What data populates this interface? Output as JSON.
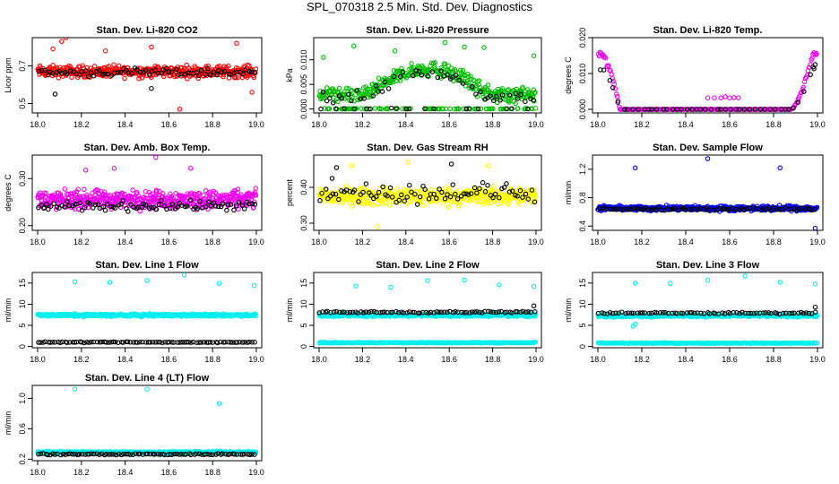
{
  "title": "SPL_070318  2.5 Min. Std. Dev. Diagnostics",
  "chart_data": [
    {
      "type": "scatter",
      "title": "Stan. Dev. Li-820 CO2",
      "ylabel": "Licor ppm",
      "xlim": [
        18.0,
        19.0
      ],
      "ylim": [
        0.45,
        0.85
      ],
      "xticks": [
        "18.0",
        "18.2",
        "18.4",
        "18.6",
        "18.8",
        "19.0"
      ],
      "yticks": [
        {
          "v": 0.5,
          "label": "0.5"
        },
        {
          "v": 0.7,
          "label": "0.7"
        }
      ],
      "series": [
        {
          "color": "#ff0000",
          "n": 420,
          "profile": {
            "kind": "band",
            "base": 0.67,
            "spread": 0.045
          },
          "outliers": [
            [
              18.11,
              0.83
            ],
            [
              18.13,
              0.85
            ],
            [
              18.07,
              0.79
            ],
            [
              18.65,
              0.47
            ],
            [
              18.31,
              0.78
            ],
            [
              18.52,
              0.8
            ],
            [
              18.91,
              0.82
            ],
            [
              18.98,
              0.56
            ]
          ]
        },
        {
          "color": "#000000",
          "n": 75,
          "profile": {
            "kind": "band",
            "base": 0.665,
            "spread": 0.03
          },
          "outliers": [
            [
              18.08,
              0.55
            ],
            [
              18.52,
              0.58
            ]
          ]
        }
      ]
    },
    {
      "type": "scatter",
      "title": "Stan. Dev. Li-820 Pressure",
      "ylabel": "kPa",
      "xlim": [
        18.0,
        19.0
      ],
      "ylim": [
        -0.0008,
        0.0145
      ],
      "xticks": [
        "18.0",
        "18.2",
        "18.4",
        "18.6",
        "18.8",
        "19.0"
      ],
      "yticks": [
        {
          "v": 0.0,
          "label": "0.000"
        },
        {
          "v": 0.005,
          "label": "0.005"
        },
        {
          "v": 0.01,
          "label": "0.010"
        }
      ],
      "series": [
        {
          "color": "#00bb00",
          "n": 430,
          "profile": {
            "kind": "arch",
            "base": 0.003,
            "peak": 0.0082,
            "spread": 0.0022,
            "zeroFrac": 0.18
          },
          "outliers": [
            [
              18.16,
              0.0128
            ],
            [
              18.35,
              0.0118
            ],
            [
              18.58,
              0.0135
            ],
            [
              18.67,
              0.0126
            ],
            [
              18.76,
              0.0125
            ],
            [
              18.99,
              0.0108
            ],
            [
              18.02,
              0.0105
            ]
          ]
        },
        {
          "color": "#000000",
          "n": 70,
          "profile": {
            "kind": "arch",
            "base": 0.0025,
            "peak": 0.0075,
            "spread": 0.0018,
            "zeroFrac": 0.25
          },
          "outliers": []
        }
      ]
    },
    {
      "type": "scatter",
      "title": "Stan. Dev. Li-820 Temp.",
      "ylabel": "degrees C",
      "xlim": [
        18.0,
        19.0
      ],
      "ylim": [
        -0.001,
        0.02
      ],
      "xticks": [
        "18.0",
        "18.2",
        "18.4",
        "18.6",
        "18.8",
        "19.0"
      ],
      "yticks": [
        {
          "v": 0.0,
          "label": "0.000"
        },
        {
          "v": 0.01,
          "label": "0.010"
        },
        {
          "v": 0.02,
          "label": "0.020"
        }
      ],
      "series": [
        {
          "color": "#ee00ee",
          "n": 230,
          "profile": {
            "kind": "ushape",
            "high": 0.0155,
            "spread": 0.0015
          },
          "outliers": [
            [
              18.5,
              0.0032
            ],
            [
              18.53,
              0.0032
            ],
            [
              18.56,
              0.0032
            ],
            [
              18.58,
              0.0035
            ],
            [
              18.6,
              0.0032
            ],
            [
              18.62,
              0.0033
            ],
            [
              18.64,
              0.0032
            ]
          ]
        },
        {
          "color": "#000000",
          "n": 45,
          "profile": {
            "kind": "ushape",
            "high": 0.0115,
            "spread": 0.001
          },
          "outliers": [
            [
              18.98,
              0.0118
            ],
            [
              18.99,
              0.0125
            ]
          ]
        }
      ]
    },
    {
      "type": "scatter",
      "title": "Stan. Dev. Amb. Box Temp.",
      "ylabel": "degrees C",
      "xlim": [
        18.0,
        19.0
      ],
      "ylim": [
        0.19,
        0.35
      ],
      "xticks": [
        "18.0",
        "18.2",
        "18.4",
        "18.6",
        "18.8",
        "19.0"
      ],
      "yticks": [
        {
          "v": 0.2,
          "label": "0.20"
        },
        {
          "v": 0.3,
          "label": "0.30"
        }
      ],
      "series": [
        {
          "color": "#ee00ee",
          "n": 520,
          "profile": {
            "kind": "band",
            "base": 0.255,
            "spread": 0.028
          },
          "outliers": [
            [
              18.54,
              0.345
            ],
            [
              18.35,
              0.322
            ],
            [
              18.7,
              0.322
            ],
            [
              18.22,
              0.318
            ]
          ]
        },
        {
          "color": "#000000",
          "n": 85,
          "profile": {
            "kind": "band",
            "base": 0.242,
            "spread": 0.015
          },
          "outliers": []
        }
      ]
    },
    {
      "type": "scatter",
      "title": "Stan. Dev. Gas Stream RH",
      "ylabel": "percent",
      "xlim": [
        18.0,
        19.0
      ],
      "ylim": [
        0.28,
        0.49
      ],
      "xticks": [
        "18.0",
        "18.2",
        "18.4",
        "18.6",
        "18.8",
        "19.0"
      ],
      "yticks": [
        {
          "v": 0.3,
          "label": "0.30"
        },
        {
          "v": 0.4,
          "label": "0.40"
        }
      ],
      "series": [
        {
          "color": "#ffff00",
          "n": 470,
          "profile": {
            "kind": "band",
            "base": 0.375,
            "spread": 0.035
          },
          "outliers": [
            [
              18.15,
              0.46
            ],
            [
              18.41,
              0.47
            ],
            [
              18.78,
              0.46
            ],
            [
              18.27,
              0.29
            ]
          ]
        },
        {
          "color": "#000000",
          "n": 80,
          "profile": {
            "kind": "band",
            "base": 0.385,
            "spread": 0.04
          },
          "outliers": [
            [
              18.08,
              0.455
            ],
            [
              18.61,
              0.465
            ],
            [
              18.06,
              0.425
            ]
          ]
        }
      ]
    },
    {
      "type": "scatter",
      "title": "Stan. Dev. Sample Flow",
      "ylabel": "ml/min",
      "xlim": [
        18.0,
        19.0
      ],
      "ylim": [
        0.34,
        1.4
      ],
      "xticks": [
        "18.0",
        "18.2",
        "18.4",
        "18.6",
        "18.8",
        "19.0"
      ],
      "yticks": [
        {
          "v": 0.4,
          "label": "0.4"
        },
        {
          "v": 0.8,
          "label": "0.8"
        },
        {
          "v": 1.2,
          "label": "1.2"
        }
      ],
      "series": [
        {
          "color": "#0000ee",
          "n": 450,
          "profile": {
            "kind": "band",
            "base": 0.65,
            "spread": 0.05
          },
          "outliers": [
            [
              18.17,
              1.22
            ],
            [
              18.5,
              1.35
            ],
            [
              18.83,
              1.22
            ],
            [
              18.99,
              0.37
            ]
          ]
        },
        {
          "color": "#000000",
          "n": 80,
          "profile": {
            "kind": "band",
            "base": 0.64,
            "spread": 0.025
          },
          "outliers": []
        }
      ]
    },
    {
      "type": "scatter",
      "title": "Stan. Dev. Line 1 Flow",
      "ylabel": "ml/min",
      "xlim": [
        18.0,
        19.0
      ],
      "ylim": [
        -0.3,
        17.5
      ],
      "xticks": [
        "18.0",
        "18.2",
        "18.4",
        "18.6",
        "18.8",
        "19.0"
      ],
      "yticks": [
        {
          "v": 0,
          "label": "0"
        },
        {
          "v": 5,
          "label": "5"
        },
        {
          "v": 10,
          "label": "10"
        },
        {
          "v": 15,
          "label": "15"
        }
      ],
      "series": [
        {
          "color": "#00eeee",
          "n": 380,
          "profile": {
            "kind": "band",
            "base": 7.4,
            "spread": 0.45
          },
          "outliers": [
            [
              18.17,
              15.3
            ],
            [
              18.33,
              15.2
            ],
            [
              18.5,
              15.6
            ],
            [
              18.67,
              16.9
            ],
            [
              18.83,
              14.9
            ],
            [
              18.99,
              14.4
            ]
          ]
        },
        {
          "color": "#000000",
          "n": 90,
          "profile": {
            "kind": "band",
            "base": 1.0,
            "spread": 0.15
          },
          "outliers": []
        }
      ]
    },
    {
      "type": "scatter",
      "title": "Stan. Dev. Line 2 Flow",
      "ylabel": "ml/min",
      "xlim": [
        18.0,
        19.0
      ],
      "ylim": [
        -0.3,
        17.5
      ],
      "xticks": [
        "18.0",
        "18.2",
        "18.4",
        "18.6",
        "18.8",
        "19.0"
      ],
      "yticks": [
        {
          "v": 0,
          "label": "0"
        },
        {
          "v": 5,
          "label": "5"
        },
        {
          "v": 10,
          "label": "10"
        },
        {
          "v": 15,
          "label": "15"
        }
      ],
      "series": [
        {
          "color": "#00eeee",
          "n": 380,
          "profile": {
            "kind": "band",
            "base": 7.4,
            "spread": 0.5
          },
          "outliers": [
            [
              18.17,
              14.3
            ],
            [
              18.33,
              14.0
            ],
            [
              18.5,
              15.6
            ],
            [
              18.67,
              15.7
            ],
            [
              18.83,
              14.6
            ],
            [
              18.99,
              14.2
            ],
            [
              18.02,
              1.0
            ]
          ]
        },
        {
          "color": "#00eeee",
          "n": 220,
          "profile": {
            "kind": "band",
            "base": 0.9,
            "spread": 0.15
          },
          "outliers": []
        },
        {
          "color": "#000000",
          "n": 80,
          "profile": {
            "kind": "band",
            "base": 8.1,
            "spread": 0.3
          },
          "outliers": [
            [
              18.99,
              9.6
            ]
          ]
        }
      ]
    },
    {
      "type": "scatter",
      "title": "Stan. Dev. Line 3 Flow",
      "ylabel": "ml/min",
      "xlim": [
        18.0,
        19.0
      ],
      "ylim": [
        -0.3,
        17.5
      ],
      "xticks": [
        "18.0",
        "18.2",
        "18.4",
        "18.6",
        "18.8",
        "19.0"
      ],
      "yticks": [
        {
          "v": 0,
          "label": "0"
        },
        {
          "v": 5,
          "label": "5"
        },
        {
          "v": 10,
          "label": "10"
        },
        {
          "v": 15,
          "label": "15"
        }
      ],
      "series": [
        {
          "color": "#00eeee",
          "n": 380,
          "profile": {
            "kind": "band",
            "base": 7.3,
            "spread": 0.5
          },
          "outliers": [
            [
              18.17,
              15.0
            ],
            [
              18.33,
              14.9
            ],
            [
              18.5,
              15.7
            ],
            [
              18.67,
              16.7
            ],
            [
              18.83,
              15.2
            ],
            [
              18.99,
              14.8
            ],
            [
              18.16,
              4.8
            ],
            [
              18.17,
              5.3
            ]
          ]
        },
        {
          "color": "#00eeee",
          "n": 220,
          "profile": {
            "kind": "band",
            "base": 0.8,
            "spread": 0.15
          },
          "outliers": []
        },
        {
          "color": "#000000",
          "n": 75,
          "profile": {
            "kind": "band",
            "base": 7.9,
            "spread": 0.3
          },
          "outliers": [
            [
              18.99,
              9.3
            ]
          ]
        }
      ]
    },
    {
      "type": "scatter",
      "title": "Stan. Dev. Line 4 (LT) Flow",
      "ylabel": "ml/min",
      "xlim": [
        18.0,
        19.0
      ],
      "ylim": [
        0.18,
        1.17
      ],
      "xticks": [
        "18.0",
        "18.2",
        "18.4",
        "18.6",
        "18.8",
        "19.0"
      ],
      "yticks": [
        {
          "v": 0.2,
          "label": "0.2"
        },
        {
          "v": 0.6,
          "label": "0.6"
        },
        {
          "v": 1.0,
          "label": "1.0"
        }
      ],
      "series": [
        {
          "color": "#00eeee",
          "n": 420,
          "profile": {
            "kind": "band",
            "base": 0.29,
            "spread": 0.02
          },
          "outliers": [
            [
              18.17,
              1.12
            ],
            [
              18.5,
              1.12
            ],
            [
              18.83,
              0.93
            ]
          ]
        },
        {
          "color": "#000000",
          "n": 90,
          "profile": {
            "kind": "band",
            "base": 0.265,
            "spread": 0.015
          },
          "outliers": []
        }
      ]
    }
  ]
}
